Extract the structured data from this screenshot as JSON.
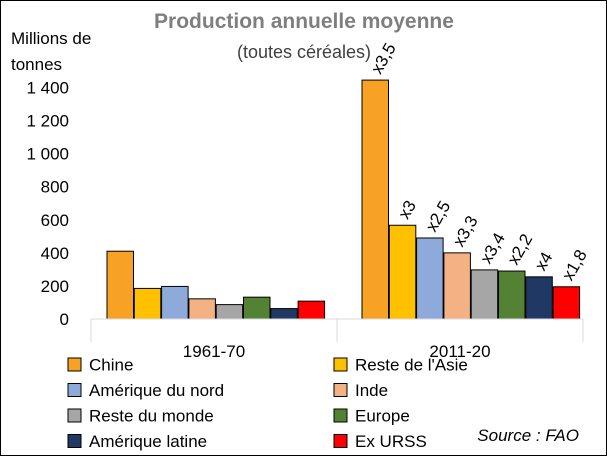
{
  "chart_data": {
    "type": "bar",
    "title": "Production annuelle moyenne",
    "subtitle": "(toutes céréales)",
    "ylabel": "Millions de tonnes",
    "ylim": [
      0,
      1500
    ],
    "yticks": [
      0,
      200,
      400,
      600,
      800,
      1000,
      1200,
      1400
    ],
    "ytick_labels": [
      "0",
      "200",
      "400",
      "600",
      "800",
      "1 000",
      "1 200",
      "1 400"
    ],
    "categories": [
      "1961-70",
      "2011-20"
    ],
    "grid": false,
    "legend_position": "bottom",
    "series": [
      {
        "name": "Chine",
        "color": "#f7a224",
        "values": [
          410,
          1445
        ],
        "annotation": "x3,5"
      },
      {
        "name": "Reste de l'Asie",
        "color": "#ffc000",
        "values": [
          185,
          567
        ],
        "annotation": "x3"
      },
      {
        "name": "Amérique du nord",
        "color": "#8eaadb",
        "values": [
          197,
          490
        ],
        "annotation": "x2,5"
      },
      {
        "name": "Inde",
        "color": "#f4b183",
        "values": [
          122,
          400
        ],
        "annotation": "x3,3"
      },
      {
        "name": "Reste du monde",
        "color": "#a6a6a6",
        "values": [
          87,
          297
        ],
        "annotation": "x3,4"
      },
      {
        "name": "Europe",
        "color": "#548235",
        "values": [
          132,
          290
        ],
        "annotation": "x2,2"
      },
      {
        "name": "Amérique latine",
        "color": "#203864",
        "values": [
          63,
          255
        ],
        "annotation": "x4"
      },
      {
        "name": "Ex URSS",
        "color": "#ff0000",
        "values": [
          108,
          195
        ],
        "annotation": "x1,8"
      }
    ],
    "source": "Source : FAO"
  }
}
